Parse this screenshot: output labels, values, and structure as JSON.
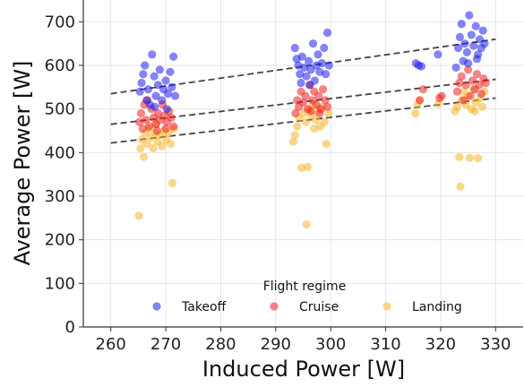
{
  "chart_data": {
    "type": "scatter",
    "xlabel": "Induced Power [W]",
    "ylabel": "Average Power [W]",
    "xlim": [
      255,
      335
    ],
    "ylim": [
      0,
      750
    ],
    "xticks": [
      260,
      270,
      280,
      290,
      300,
      310,
      320,
      330
    ],
    "yticks": [
      0,
      100,
      200,
      300,
      400,
      500,
      600,
      700
    ],
    "grid": true,
    "legend": {
      "title": "Flight regime",
      "placement": "bottom-center",
      "entries": [
        "Takeoff",
        "Cruise",
        "Landing"
      ]
    },
    "colors": {
      "Takeoff": "#1f1fef",
      "Cruise": "#ef1f1f",
      "Landing": "#f5b42a"
    },
    "series": [
      {
        "name": "Takeoff",
        "points": [
          [
            265.3,
            540
          ],
          [
            265.6,
            560
          ],
          [
            265.9,
            580
          ],
          [
            266.2,
            600
          ],
          [
            266.5,
            520
          ],
          [
            266.8,
            545
          ],
          [
            267.1,
            510
          ],
          [
            267.5,
            625
          ],
          [
            267.9,
            575
          ],
          [
            268.2,
            530
          ],
          [
            268.6,
            555
          ],
          [
            268.9,
            590
          ],
          [
            269.3,
            520
          ],
          [
            269.6,
            545
          ],
          [
            270.0,
            565
          ],
          [
            270.4,
            535
          ],
          [
            270.8,
            585
          ],
          [
            271.1,
            550
          ],
          [
            271.4,
            620
          ],
          [
            271.7,
            530
          ],
          [
            268.0,
            505
          ],
          [
            270.2,
            500
          ],
          [
            293.5,
            640
          ],
          [
            293.8,
            615
          ],
          [
            294.1,
            600
          ],
          [
            294.4,
            580
          ],
          [
            294.8,
            620
          ],
          [
            295.2,
            595
          ],
          [
            295.6,
            575
          ],
          [
            296.0,
            610
          ],
          [
            296.4,
            590
          ],
          [
            296.8,
            650
          ],
          [
            297.1,
            565
          ],
          [
            297.4,
            600
          ],
          [
            297.7,
            625
          ],
          [
            298.0,
            585
          ],
          [
            298.4,
            605
          ],
          [
            298.8,
            640
          ],
          [
            299.1,
            580
          ],
          [
            299.4,
            675
          ],
          [
            299.7,
            600
          ],
          [
            294.6,
            560
          ],
          [
            296.2,
            555
          ],
          [
            315.5,
            605
          ],
          [
            316.0,
            600
          ],
          [
            316.5,
            598
          ],
          [
            319.5,
            625
          ],
          [
            322.8,
            595
          ],
          [
            323.2,
            640
          ],
          [
            323.5,
            665
          ],
          [
            323.8,
            695
          ],
          [
            324.1,
            610
          ],
          [
            324.4,
            650
          ],
          [
            324.8,
            630
          ],
          [
            325.2,
            715
          ],
          [
            325.6,
            670
          ],
          [
            326.0,
            645
          ],
          [
            326.4,
            690
          ],
          [
            326.8,
            625
          ],
          [
            327.1,
            660
          ],
          [
            327.4,
            640
          ],
          [
            327.7,
            680
          ],
          [
            328.0,
            650
          ],
          [
            325.0,
            605
          ],
          [
            326.6,
            615
          ]
        ]
      },
      {
        "name": "Cruise",
        "points": [
          [
            265.2,
            470
          ],
          [
            265.5,
            490
          ],
          [
            265.8,
            455
          ],
          [
            266.1,
            510
          ],
          [
            266.4,
            475
          ],
          [
            266.7,
            520
          ],
          [
            267.0,
            460
          ],
          [
            267.4,
            500
          ],
          [
            267.8,
            480
          ],
          [
            268.2,
            465
          ],
          [
            268.6,
            490
          ],
          [
            269.0,
            475
          ],
          [
            269.4,
            510
          ],
          [
            269.8,
            485
          ],
          [
            270.2,
            470
          ],
          [
            270.6,
            495
          ],
          [
            271.0,
            480
          ],
          [
            271.4,
            460
          ],
          [
            268.4,
            450
          ],
          [
            270.0,
            455
          ],
          [
            293.6,
            490
          ],
          [
            293.9,
            520
          ],
          [
            294.2,
            505
          ],
          [
            294.6,
            540
          ],
          [
            295.0,
            515
          ],
          [
            295.4,
            530
          ],
          [
            295.8,
            500
          ],
          [
            296.2,
            555
          ],
          [
            296.6,
            520
          ],
          [
            297.0,
            540
          ],
          [
            297.4,
            510
          ],
          [
            297.8,
            530
          ],
          [
            298.2,
            500
          ],
          [
            298.6,
            545
          ],
          [
            299.0,
            520
          ],
          [
            299.4,
            505
          ],
          [
            296.4,
            495
          ],
          [
            298.0,
            490
          ],
          [
            316.2,
            520
          ],
          [
            316.8,
            545
          ],
          [
            319.8,
            525
          ],
          [
            320.2,
            530
          ],
          [
            323.0,
            540
          ],
          [
            323.4,
            560
          ],
          [
            323.8,
            575
          ],
          [
            324.2,
            520
          ],
          [
            324.6,
            555
          ],
          [
            325.0,
            590
          ],
          [
            325.4,
            530
          ],
          [
            325.8,
            565
          ],
          [
            326.2,
            545
          ],
          [
            326.6,
            580
          ],
          [
            327.0,
            555
          ],
          [
            327.4,
            535
          ],
          [
            327.8,
            570
          ],
          [
            328.2,
            560
          ]
        ]
      },
      {
        "name": "Landing",
        "points": [
          [
            265.1,
            255
          ],
          [
            265.4,
            410
          ],
          [
            265.7,
            430
          ],
          [
            266.0,
            390
          ],
          [
            266.3,
            445
          ],
          [
            266.6,
            420
          ],
          [
            266.9,
            455
          ],
          [
            267.3,
            435
          ],
          [
            267.7,
            410
          ],
          [
            268.1,
            445
          ],
          [
            268.5,
            425
          ],
          [
            268.9,
            440
          ],
          [
            269.3,
            415
          ],
          [
            269.7,
            450
          ],
          [
            270.1,
            430
          ],
          [
            270.5,
            445
          ],
          [
            270.9,
            420
          ],
          [
            271.2,
            330
          ],
          [
            271.5,
            455
          ],
          [
            268.3,
            465
          ],
          [
            293.2,
            425
          ],
          [
            293.5,
            440
          ],
          [
            293.9,
            460
          ],
          [
            294.3,
            480
          ],
          [
            294.7,
            365
          ],
          [
            295.1,
            490
          ],
          [
            295.5,
            470
          ],
          [
            295.8,
            367
          ],
          [
            296.1,
            500
          ],
          [
            296.5,
            485
          ],
          [
            296.9,
            510
          ],
          [
            297.3,
            475
          ],
          [
            297.7,
            495
          ],
          [
            298.1,
            460
          ],
          [
            298.5,
            505
          ],
          [
            298.9,
            470
          ],
          [
            299.2,
            420
          ],
          [
            299.6,
            490
          ],
          [
            295.6,
            235
          ],
          [
            297.0,
            455
          ],
          [
            315.4,
            490
          ],
          [
            315.8,
            510
          ],
          [
            316.2,
            520
          ],
          [
            319.6,
            512
          ],
          [
            322.6,
            495
          ],
          [
            323.0,
            505
          ],
          [
            323.4,
            390
          ],
          [
            323.6,
            322
          ],
          [
            323.8,
            520
          ],
          [
            324.2,
            540
          ],
          [
            324.6,
            510
          ],
          [
            325.0,
            530
          ],
          [
            325.3,
            388
          ],
          [
            325.6,
            500
          ],
          [
            326.0,
            545
          ],
          [
            326.4,
            515
          ],
          [
            326.8,
            387
          ],
          [
            327.2,
            525
          ],
          [
            327.6,
            505
          ],
          [
            328.0,
            540
          ],
          [
            326.2,
            495
          ]
        ]
      }
    ],
    "trend_lines": [
      {
        "x": [
          260,
          330
        ],
        "y": [
          535,
          660
        ]
      },
      {
        "x": [
          260,
          330
        ],
        "y": [
          465,
          568
        ]
      },
      {
        "x": [
          260,
          330
        ],
        "y": [
          422,
          525
        ]
      }
    ]
  }
}
